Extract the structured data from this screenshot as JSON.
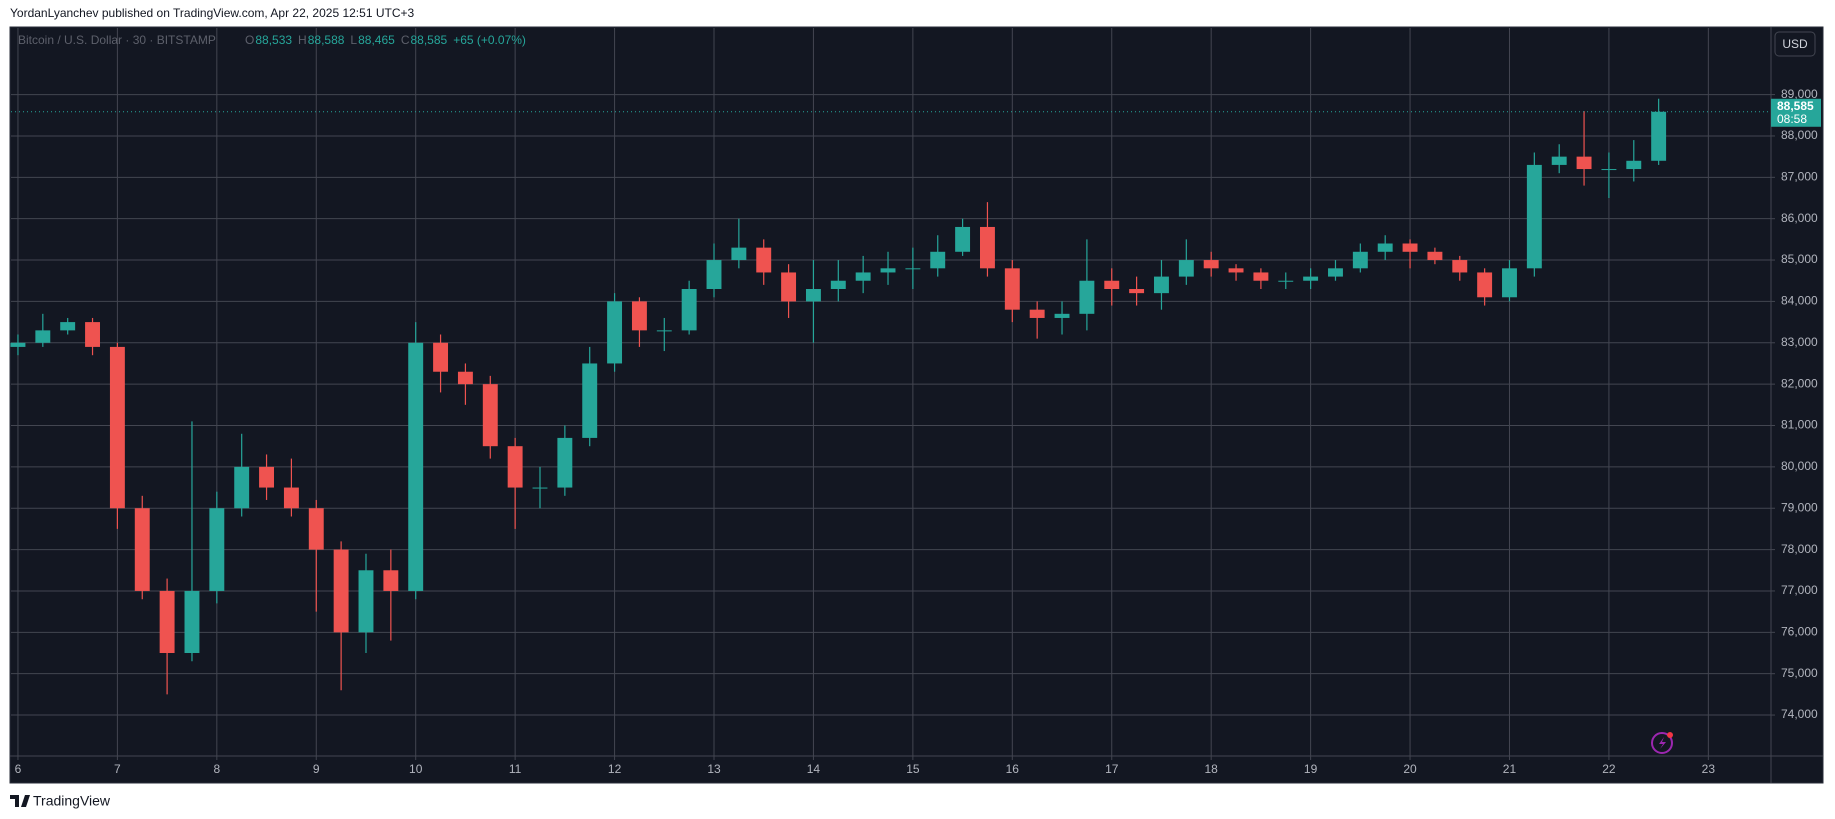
{
  "header": "YordanLyanchev published on TradingView.com, Apr 22, 2025 12:51 UTC+3",
  "footer": "TradingView",
  "chart_data": {
    "type": "candlestick",
    "symbol": "Bitcoin / U.S. Dollar · 30 · BITSTAMP",
    "ohlc_legend": [
      {
        "label": "O",
        "value": "88,533"
      },
      {
        "label": "H",
        "value": "88,588"
      },
      {
        "label": "L",
        "value": "88,465"
      },
      {
        "label": "C",
        "value": "88,585"
      }
    ],
    "change": "+65 (+0.07%)",
    "currency": "USD",
    "last_price": {
      "value": 88585,
      "label": "88,585",
      "countdown": "08:58"
    },
    "up_color": "#26a69a",
    "down_color": "#ef5350",
    "grid": true,
    "xlim": [
      5.93,
      23.63
    ],
    "ylim": [
      73010,
      90610
    ],
    "xticks": [
      6,
      7,
      8,
      9,
      10,
      11,
      12,
      13,
      14,
      15,
      16,
      17,
      18,
      19,
      20,
      21,
      22,
      23
    ],
    "yticks": [
      {
        "value": 74000,
        "label": "74,000"
      },
      {
        "value": 75000,
        "label": "75,000"
      },
      {
        "value": 76000,
        "label": "76,000"
      },
      {
        "value": 77000,
        "label": "77,000"
      },
      {
        "value": 78000,
        "label": "78,000"
      },
      {
        "value": 79000,
        "label": "79,000"
      },
      {
        "value": 80000,
        "label": "80,000"
      },
      {
        "value": 81000,
        "label": "81,000"
      },
      {
        "value": 82000,
        "label": "82,000"
      },
      {
        "value": 83000,
        "label": "83,000"
      },
      {
        "value": 84000,
        "label": "84,000"
      },
      {
        "value": 85000,
        "label": "85,000"
      },
      {
        "value": 86000,
        "label": "86,000"
      },
      {
        "value": 87000,
        "label": "87,000"
      },
      {
        "value": 88000,
        "label": "88,000"
      },
      {
        "value": 89000,
        "label": "89,000"
      }
    ],
    "x": [
      6,
      6.25,
      6.5,
      6.75,
      7,
      7.25,
      7.5,
      7.75,
      8,
      8.25,
      8.5,
      8.75,
      9,
      9.25,
      9.5,
      9.75,
      10,
      10.25,
      10.5,
      10.75,
      11,
      11.25,
      11.5,
      11.75,
      12,
      12.25,
      12.5,
      12.75,
      13,
      13.25,
      13.5,
      13.75,
      14,
      14.25,
      14.5,
      14.75,
      15,
      15.25,
      15.5,
      15.75,
      16,
      16.25,
      16.5,
      16.75,
      17,
      17.25,
      17.5,
      17.75,
      18,
      18.25,
      18.5,
      18.75,
      19,
      19.25,
      19.5,
      19.75,
      20,
      20.25,
      20.5,
      20.75,
      21,
      21.25,
      21.5,
      21.75,
      22,
      22.25,
      22.5
    ],
    "open": [
      82900,
      83000,
      83300,
      83500,
      82900,
      79000,
      77000,
      75500,
      77000,
      79000,
      80000,
      79500,
      79000,
      78000,
      76000,
      77500,
      77000,
      83000,
      82300,
      82000,
      80500,
      79500,
      79500,
      80700,
      82500,
      84000,
      83300,
      83300,
      84300,
      85000,
      85300,
      84700,
      84000,
      84300,
      84500,
      84700,
      84800,
      84800,
      85200,
      85800,
      84800,
      83800,
      83600,
      83700,
      84500,
      84300,
      84200,
      84600,
      85000,
      84800,
      84700,
      84500,
      84500,
      84600,
      84800,
      85200,
      85400,
      85200,
      85000,
      84700,
      84100,
      84800,
      87300,
      87500,
      87200,
      87200,
      87400
    ],
    "high": [
      83200,
      83700,
      83600,
      83600,
      83000,
      79300,
      77300,
      81100,
      79400,
      80800,
      80300,
      80200,
      79200,
      78200,
      77900,
      78000,
      83500,
      83200,
      82500,
      82200,
      80700,
      80000,
      81000,
      82900,
      84200,
      84100,
      83600,
      84500,
      85400,
      86000,
      85500,
      84900,
      85000,
      85000,
      85100,
      85200,
      85300,
      85600,
      86000,
      86400,
      85000,
      84000,
      84000,
      85500,
      84800,
      84600,
      85000,
      85500,
      85200,
      84900,
      84800,
      84700,
      84800,
      85000,
      85400,
      85600,
      85500,
      85300,
      85100,
      84800,
      85000,
      87600,
      87800,
      88600,
      87600,
      87900,
      88900
    ],
    "low": [
      82700,
      82900,
      83200,
      82700,
      78500,
      76800,
      74500,
      75300,
      76700,
      78800,
      79200,
      78800,
      76500,
      74600,
      75500,
      75800,
      76800,
      81800,
      81500,
      80200,
      78500,
      79000,
      79300,
      80500,
      82300,
      82900,
      82800,
      83200,
      84100,
      84800,
      84400,
      83600,
      83000,
      84000,
      84200,
      84400,
      84300,
      84600,
      85100,
      84600,
      83500,
      83100,
      83200,
      83300,
      83900,
      83900,
      83800,
      84400,
      84600,
      84500,
      84300,
      84300,
      84300,
      84500,
      84700,
      85000,
      84800,
      84900,
      84500,
      83900,
      84000,
      84600,
      87100,
      86800,
      86500,
      86900,
      87300
    ],
    "close": [
      83000,
      83300,
      83500,
      82900,
      79000,
      77000,
      75500,
      77000,
      79000,
      80000,
      79500,
      79000,
      78000,
      76000,
      77500,
      77000,
      83000,
      82300,
      82000,
      80500,
      79500,
      79500,
      80700,
      82500,
      84000,
      83300,
      83300,
      84300,
      85000,
      85300,
      84700,
      84000,
      84300,
      84500,
      84700,
      84800,
      84800,
      85200,
      85800,
      84800,
      83800,
      83600,
      83700,
      84500,
      84300,
      84200,
      84600,
      85000,
      84800,
      84700,
      84500,
      84500,
      84600,
      84800,
      85200,
      85400,
      85200,
      85000,
      84700,
      84100,
      84800,
      87300,
      87500,
      87200,
      87200,
      87400,
      88585
    ]
  }
}
